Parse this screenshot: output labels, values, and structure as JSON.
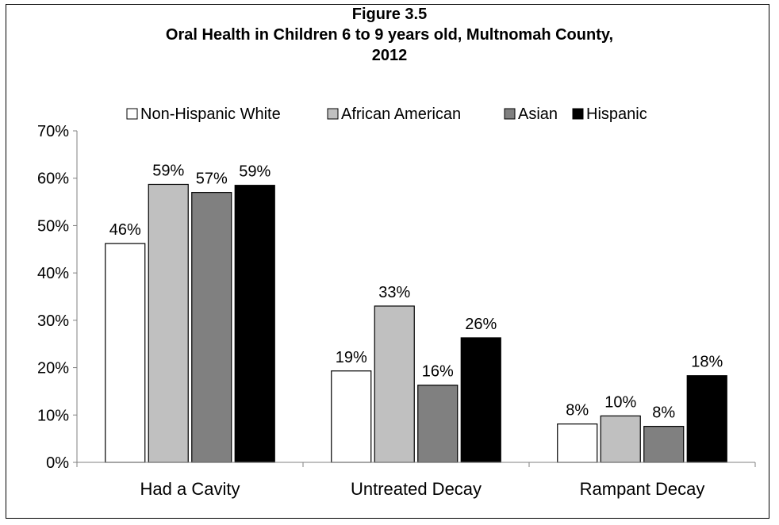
{
  "chart_data": {
    "type": "bar",
    "title_lines": [
      "Figure 3.5",
      "Oral Health in Children 6 to 9 years old, Multnomah County,",
      "2012"
    ],
    "categories": [
      "Had a Cavity",
      "Untreated Decay",
      "Rampant Decay"
    ],
    "series": [
      {
        "name": "Non-Hispanic White",
        "color": "#ffffff",
        "values": [
          46.2,
          19.3,
          8.1
        ],
        "labels": [
          "46%",
          "19%",
          "8%"
        ]
      },
      {
        "name": "African American",
        "color": "#c0c0c0",
        "values": [
          58.7,
          33.0,
          9.8
        ],
        "labels": [
          "59%",
          "33%",
          "10%"
        ]
      },
      {
        "name": "Asian",
        "color": "#808080",
        "values": [
          57.0,
          16.3,
          7.6
        ],
        "labels": [
          "57%",
          "16%",
          "8%"
        ]
      },
      {
        "name": "Hispanic",
        "color": "#000000",
        "values": [
          58.5,
          26.3,
          18.3
        ],
        "labels": [
          "59%",
          "26%",
          "18%"
        ]
      }
    ],
    "ylim": [
      0,
      70
    ],
    "yticks": [
      0,
      10,
      20,
      30,
      40,
      50,
      60,
      70
    ],
    "ytick_labels": [
      "0%",
      "10%",
      "20%",
      "30%",
      "40%",
      "50%",
      "60%",
      "70%"
    ],
    "grid": false,
    "legend_position": "top"
  }
}
